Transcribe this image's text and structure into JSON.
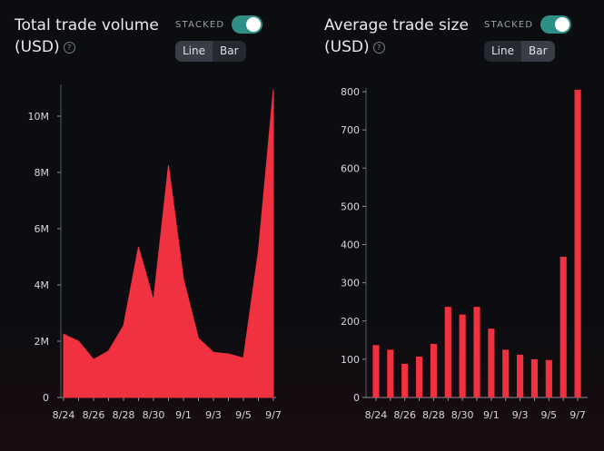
{
  "chart_data": [
    {
      "type": "area",
      "title": "Total trade volume (USD)",
      "stacked_label": "STACKED",
      "stacked": true,
      "view_options": [
        "Line",
        "Bar"
      ],
      "selected_view": "Line",
      "help_icon": "question-circle-icon",
      "color": "#f0313f",
      "x": [
        "8/24",
        "8/25",
        "8/26",
        "8/27",
        "8/28",
        "8/29",
        "8/30",
        "8/31",
        "9/1",
        "9/2",
        "9/3",
        "9/4",
        "9/5",
        "9/6",
        "9/7"
      ],
      "xtick_labels": [
        "8/24",
        "8/26",
        "8/28",
        "8/30",
        "9/1",
        "9/3",
        "9/5",
        "9/7"
      ],
      "values": [
        2250000,
        2000000,
        1350000,
        1650000,
        2550000,
        5350000,
        3450000,
        8250000,
        4200000,
        2100000,
        1600000,
        1550000,
        1400000,
        5200000,
        10950000
      ],
      "ylim": [
        0,
        11000000
      ],
      "yticks": [
        0,
        2000000,
        4000000,
        6000000,
        8000000,
        10000000
      ],
      "ytick_labels": [
        "0",
        "2M",
        "4M",
        "6M",
        "8M",
        "10M"
      ],
      "xlabel": "",
      "ylabel": ""
    },
    {
      "type": "bar",
      "title": "Average trade size (USD)",
      "stacked_label": "STACKED",
      "stacked": true,
      "view_options": [
        "Line",
        "Bar"
      ],
      "selected_view": "Bar",
      "help_icon": "question-circle-icon",
      "color": "#f0313f",
      "categories": [
        "8/24",
        "8/25",
        "8/26",
        "8/27",
        "8/28",
        "8/29",
        "8/30",
        "8/31",
        "9/1",
        "9/2",
        "9/3",
        "9/4",
        "9/5",
        "9/6",
        "9/7"
      ],
      "xtick_labels": [
        "8/24",
        "8/26",
        "8/28",
        "8/30",
        "9/1",
        "9/3",
        "9/5",
        "9/7"
      ],
      "values": [
        137,
        125,
        88,
        107,
        140,
        237,
        217,
        237,
        180,
        125,
        112,
        100,
        98,
        368,
        805
      ],
      "ylim": [
        0,
        800
      ],
      "yticks": [
        0,
        100,
        200,
        300,
        400,
        500,
        600,
        700,
        800
      ],
      "ytick_labels": [
        "0",
        "100",
        "200",
        "300",
        "400",
        "500",
        "600",
        "700",
        "800"
      ],
      "xlabel": "",
      "ylabel": ""
    }
  ]
}
